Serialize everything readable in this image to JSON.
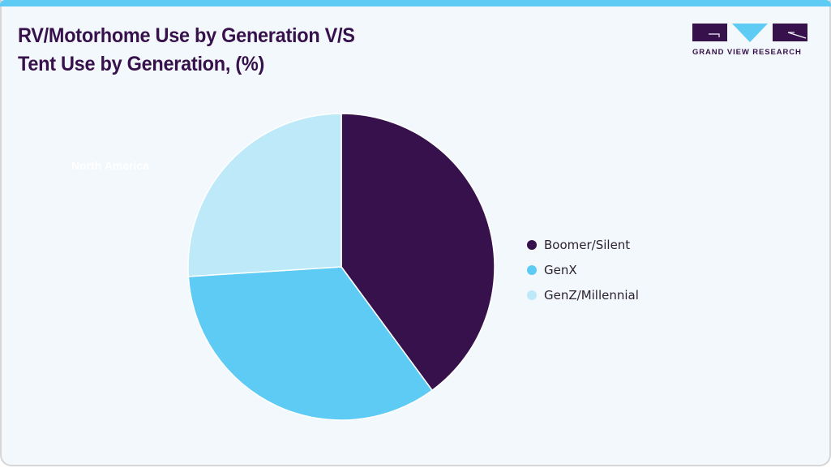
{
  "header": {
    "title_line1": "RV/Motorhome Use by Generation V/S",
    "title_line2": "Tent Use by Generation, (%)",
    "accent_color": "#5ecbf5"
  },
  "logo": {
    "text": "GRAND VIEW RESEARCH",
    "icon": "gvr-logo-icon",
    "primary_color": "#37114b",
    "accent_color": "#5ecbf5"
  },
  "chart_data": {
    "type": "pie",
    "title": "RV/Motorhome Use by Generation V/S Tent Use by Generation, (%)",
    "subtitle": "North America",
    "categories": [
      "Boomer/Silent",
      "GenX",
      "GenZ/Millennial"
    ],
    "values": [
      39.9,
      34.1,
      26.0
    ],
    "colors": [
      "#37114b",
      "#5ecbf5",
      "#bde9f9"
    ],
    "start_angle": "12 o'clock",
    "direction": "clockwise",
    "legend_position": "right",
    "data_labels": false
  },
  "region_label": "North America",
  "legend": {
    "items": [
      {
        "label": "Boomer/Silent",
        "color": "#37114b"
      },
      {
        "label": "GenX",
        "color": "#5ecbf5"
      },
      {
        "label": "GenZ/Millennial",
        "color": "#bde9f9"
      }
    ]
  }
}
